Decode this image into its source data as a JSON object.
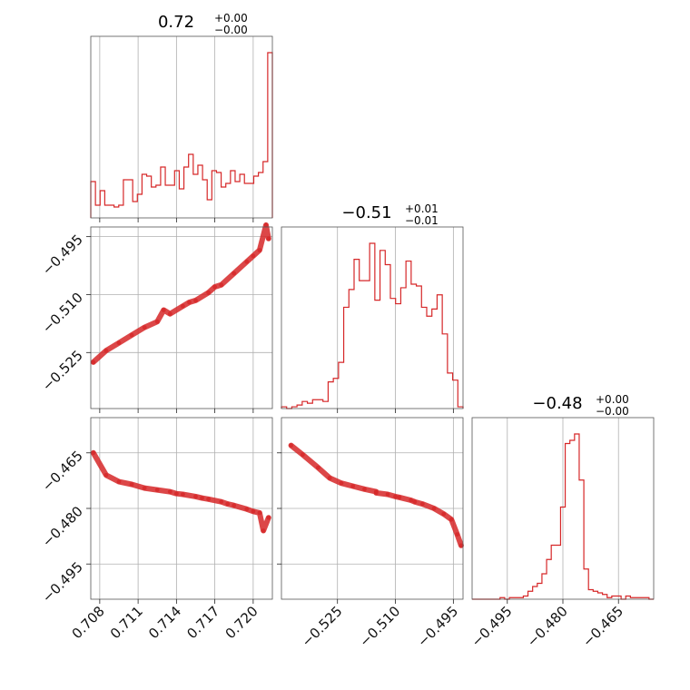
{
  "chart_data": {
    "type": "corner",
    "color": "#d62728",
    "grid": true,
    "parameters": [
      {
        "median": "0.72",
        "plus": "+0.00",
        "minus": "−0.00",
        "range": [
          0.7073,
          0.7215
        ],
        "ticks": [
          0.708,
          0.711,
          0.714,
          0.717,
          0.72
        ],
        "tick_labels": [
          "0.708",
          "0.711",
          "0.714",
          "0.717",
          "0.720"
        ]
      },
      {
        "median": "−0.51",
        "plus": "+0.01",
        "minus": "−0.01",
        "range": [
          -0.5395,
          -0.4925
        ],
        "ticks": [
          -0.525,
          -0.51,
          -0.495
        ],
        "tick_labels": [
          "−0.525",
          "−0.510",
          "−0.495"
        ]
      },
      {
        "median": "−0.48",
        "plus": "+0.00",
        "minus": "−0.00",
        "range": [
          -0.5045,
          -0.4555
        ],
        "ticks": [
          -0.495,
          -0.48,
          -0.465
        ],
        "tick_labels": [
          "−0.495",
          "−0.480",
          "−0.465"
        ]
      }
    ],
    "histograms": [
      {
        "param": 0,
        "counts": [
          20,
          7,
          15,
          7,
          7,
          6,
          7,
          21,
          21,
          9,
          13,
          24,
          23,
          17,
          18,
          28,
          18,
          18,
          26,
          16,
          28,
          35,
          24,
          29,
          21,
          10,
          26,
          25,
          17,
          19,
          26,
          20,
          24,
          19,
          19,
          23,
          25,
          31,
          91
        ]
      },
      {
        "param": 1,
        "counts": [
          1,
          0,
          1,
          2,
          4,
          3,
          5,
          5,
          4,
          15,
          17,
          26,
          57,
          67,
          84,
          72,
          72,
          93,
          61,
          89,
          81,
          62,
          59,
          68,
          83,
          70,
          69,
          57,
          52,
          56,
          64,
          42,
          20,
          16,
          1
        ]
      },
      {
        "param": 2,
        "counts": [
          0,
          0,
          0,
          0,
          0,
          0,
          1,
          0,
          1,
          1,
          1,
          2,
          5,
          8,
          10,
          16,
          25,
          34,
          34,
          58,
          98,
          100,
          104,
          75,
          19,
          6,
          5,
          4,
          3,
          1,
          2,
          2,
          0,
          2,
          1,
          1,
          1,
          1,
          0
        ]
      }
    ],
    "scatter": [
      {
        "x_param": 0,
        "y_param": 1,
        "points": [
          [
            0.7075,
            -0.5275
          ],
          [
            0.7085,
            -0.5245
          ],
          [
            0.7095,
            -0.5225
          ],
          [
            0.7105,
            -0.5205
          ],
          [
            0.7115,
            -0.5185
          ],
          [
            0.7125,
            -0.517
          ],
          [
            0.7135,
            -0.515
          ],
          [
            0.7145,
            -0.513
          ],
          [
            0.7155,
            -0.5115
          ],
          [
            0.7165,
            -0.5095
          ],
          [
            0.7175,
            -0.5075
          ],
          [
            0.7185,
            -0.5045
          ],
          [
            0.7195,
            -0.5015
          ],
          [
            0.7205,
            -0.4985
          ],
          [
            0.7212,
            -0.4955
          ],
          [
            0.721,
            -0.492
          ],
          [
            0.713,
            -0.514
          ],
          [
            0.715,
            -0.512
          ],
          [
            0.717,
            -0.508
          ],
          [
            0.72,
            -0.5
          ]
        ]
      },
      {
        "x_param": 0,
        "y_param": 2,
        "points": [
          [
            0.7075,
            -0.465
          ],
          [
            0.7085,
            -0.471
          ],
          [
            0.7095,
            -0.4728
          ],
          [
            0.7105,
            -0.4735
          ],
          [
            0.7115,
            -0.4745
          ],
          [
            0.7125,
            -0.475
          ],
          [
            0.7135,
            -0.4755
          ],
          [
            0.7145,
            -0.4762
          ],
          [
            0.7155,
            -0.4768
          ],
          [
            0.7165,
            -0.4775
          ],
          [
            0.7175,
            -0.4782
          ],
          [
            0.7185,
            -0.4792
          ],
          [
            0.7195,
            -0.4802
          ],
          [
            0.7205,
            -0.4812
          ],
          [
            0.7212,
            -0.4825
          ],
          [
            0.7208,
            -0.486
          ],
          [
            0.714,
            -0.476
          ],
          [
            0.716,
            -0.4772
          ],
          [
            0.718,
            -0.4788
          ],
          [
            0.72,
            -0.4808
          ]
        ]
      },
      {
        "x_param": 1,
        "y_param": 2,
        "points": [
          [
            -0.537,
            -0.463
          ],
          [
            -0.534,
            -0.4655
          ],
          [
            -0.53,
            -0.469
          ],
          [
            -0.527,
            -0.4718
          ],
          [
            -0.524,
            -0.4732
          ],
          [
            -0.521,
            -0.474
          ],
          [
            -0.518,
            -0.4748
          ],
          [
            -0.515,
            -0.4755
          ],
          [
            -0.512,
            -0.4762
          ],
          [
            -0.509,
            -0.477
          ],
          [
            -0.506,
            -0.4778
          ],
          [
            -0.503,
            -0.4788
          ],
          [
            -0.5,
            -0.48
          ],
          [
            -0.4975,
            -0.4815
          ],
          [
            -0.4955,
            -0.483
          ],
          [
            -0.494,
            -0.487
          ],
          [
            -0.493,
            -0.49
          ],
          [
            -0.51,
            -0.4768
          ],
          [
            -0.505,
            -0.4782
          ],
          [
            -0.515,
            -0.4758
          ]
        ]
      }
    ]
  }
}
